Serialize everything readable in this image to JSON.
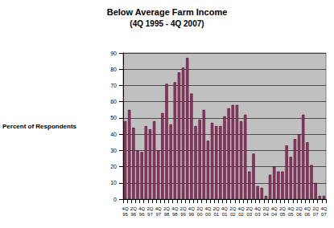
{
  "chart_data": {
    "type": "bar",
    "title": "Below Average Farm Income",
    "subtitle": "(4Q 1995 - 4Q 2007)",
    "y_label": "Percent of Respondents",
    "categories": [
      "4Q\n95",
      null,
      "2Q\n96",
      null,
      "4Q\n96",
      null,
      "2Q\n97",
      null,
      "4Q\n97",
      null,
      "2Q\n98",
      null,
      "4Q\n98",
      null,
      "2Q\n99",
      null,
      "4Q\n99",
      null,
      "2Q\n00",
      null,
      "4Q\n00",
      null,
      "2Q\n01",
      null,
      "4Q\n01",
      null,
      "2Q\n02",
      null,
      "4Q\n02",
      null,
      "2Q\n03",
      null,
      "4Q\n03",
      null,
      "2Q\n04",
      null,
      "4Q\n04",
      null,
      "2Q\n05",
      null,
      "4Q\n05",
      null,
      "2Q\n06",
      null,
      "4Q\n06",
      null,
      "2Q\n07",
      null,
      "4Q\n07"
    ],
    "values": [
      48,
      55,
      44,
      30,
      29,
      45,
      43,
      48,
      30,
      53,
      71,
      46,
      72,
      78,
      81,
      87,
      65,
      45,
      49,
      55,
      36,
      47,
      45,
      45,
      51,
      56,
      58,
      58,
      48,
      52,
      17,
      28,
      8,
      7,
      2,
      15,
      20,
      17,
      17,
      33,
      26,
      37,
      40,
      52,
      35,
      21,
      10,
      2,
      2
    ],
    "color": "#993366",
    "ylim": [
      0,
      90
    ],
    "yticks": [
      0,
      10,
      20,
      30,
      40,
      50,
      60,
      70,
      80,
      90
    ],
    "grid": true
  }
}
